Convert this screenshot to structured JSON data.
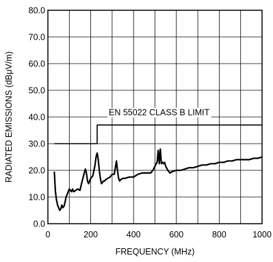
{
  "chart_data": {
    "type": "line",
    "xlabel": "FREQUENCY (MHz)",
    "ylabel": "RADIATED EMISSIONS (dBμV/m)",
    "xlim": [
      0,
      1000
    ],
    "ylim": [
      0,
      80
    ],
    "x_ticks": [
      0,
      200,
      400,
      600,
      800,
      1000
    ],
    "x_tick_labels": [
      "0",
      "200",
      "400",
      "600",
      "800",
      "1000"
    ],
    "y_ticks": [
      0,
      10,
      20,
      30,
      40,
      50,
      60,
      70,
      80
    ],
    "y_tick_labels": [
      "0.0",
      "10.0",
      "20.0",
      "30.0",
      "40.0",
      "50.0",
      "60.0",
      "70.0",
      "80.0"
    ],
    "grid": true,
    "annotation": "EN 55022 CLASS B LIMIT",
    "series": [
      {
        "key": "limit",
        "color": "#000000",
        "x": [
          30,
          230,
          230,
          1000
        ],
        "y": [
          30,
          30,
          37,
          37
        ]
      },
      {
        "key": "measured",
        "color": "#000000",
        "x": [
          30,
          35,
          40,
          45,
          50,
          55,
          60,
          65,
          70,
          75,
          80,
          85,
          90,
          95,
          100,
          105,
          110,
          115,
          120,
          130,
          140,
          150,
          160,
          170,
          175,
          180,
          185,
          190,
          195,
          200,
          205,
          210,
          215,
          220,
          225,
          230,
          235,
          240,
          245,
          250,
          255,
          260,
          265,
          270,
          280,
          290,
          300,
          310,
          315,
          320,
          325,
          330,
          335,
          340,
          350,
          360,
          380,
          400,
          420,
          440,
          460,
          480,
          490,
          500,
          505,
          510,
          515,
          520,
          525,
          530,
          535,
          540,
          545,
          550,
          560,
          570,
          580,
          600,
          620,
          640,
          660,
          680,
          700,
          720,
          740,
          760,
          780,
          800,
          820,
          840,
          860,
          880,
          900,
          920,
          940,
          960,
          980,
          1000
        ],
        "y": [
          19.5,
          12,
          9,
          7,
          6,
          5,
          5.5,
          7,
          6,
          6.5,
          8,
          10,
          11,
          12,
          13,
          12.5,
          12,
          13,
          12,
          12.5,
          13,
          12.5,
          16,
          19,
          20.5,
          19,
          16,
          15,
          16,
          17,
          17.5,
          18,
          20,
          22,
          25,
          26.5,
          24,
          20,
          17,
          15,
          15.5,
          16,
          16,
          16.5,
          17,
          17.5,
          18.5,
          18.5,
          21,
          23.5,
          20,
          17,
          16,
          16.5,
          17,
          17,
          17.5,
          17.5,
          18.5,
          19,
          19,
          19,
          20,
          21.5,
          22.5,
          23,
          27.5,
          22.5,
          28,
          22.5,
          23,
          22.5,
          23,
          21.5,
          20,
          19,
          19.5,
          20,
          20,
          20.5,
          21,
          21,
          21.5,
          22,
          22,
          22.5,
          22.5,
          23,
          23,
          23.5,
          23.5,
          24,
          24,
          24,
          24,
          24.5,
          24.5,
          25
        ]
      }
    ]
  }
}
